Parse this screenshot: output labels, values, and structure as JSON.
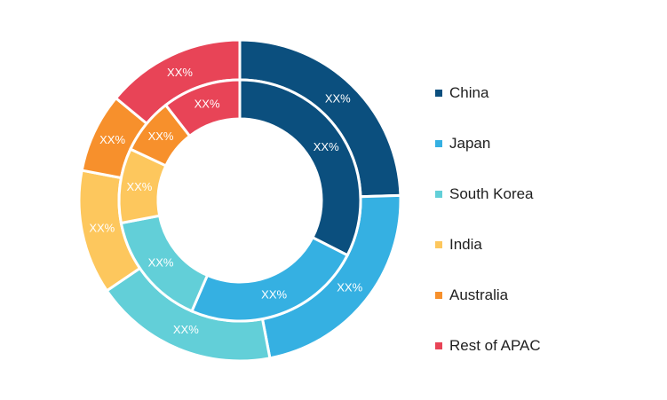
{
  "chart_data": {
    "type": "donut",
    "rings": [
      {
        "name": "outer",
        "values": [
          24.5,
          22.5,
          18.5,
          12.5,
          8.0,
          14.0
        ],
        "labels": [
          "XX%",
          "XX%",
          "XX%",
          "XX%",
          "XX%",
          "XX%"
        ]
      },
      {
        "name": "inner",
        "values": [
          32.5,
          24.0,
          15.5,
          10.0,
          7.5,
          10.5
        ],
        "labels": [
          "XX%",
          "XX%",
          "XX%",
          "XX%",
          "XX%",
          "XX%"
        ]
      }
    ],
    "categories": [
      "China",
      "Japan",
      "South Korea",
      "India",
      "Australia",
      "Rest of APAC"
    ],
    "colors": [
      "#0b4f7e",
      "#35b0e2",
      "#62cfd8",
      "#fdc75d",
      "#f7902c",
      "#e84457"
    ],
    "legend": {
      "position": "right"
    }
  }
}
